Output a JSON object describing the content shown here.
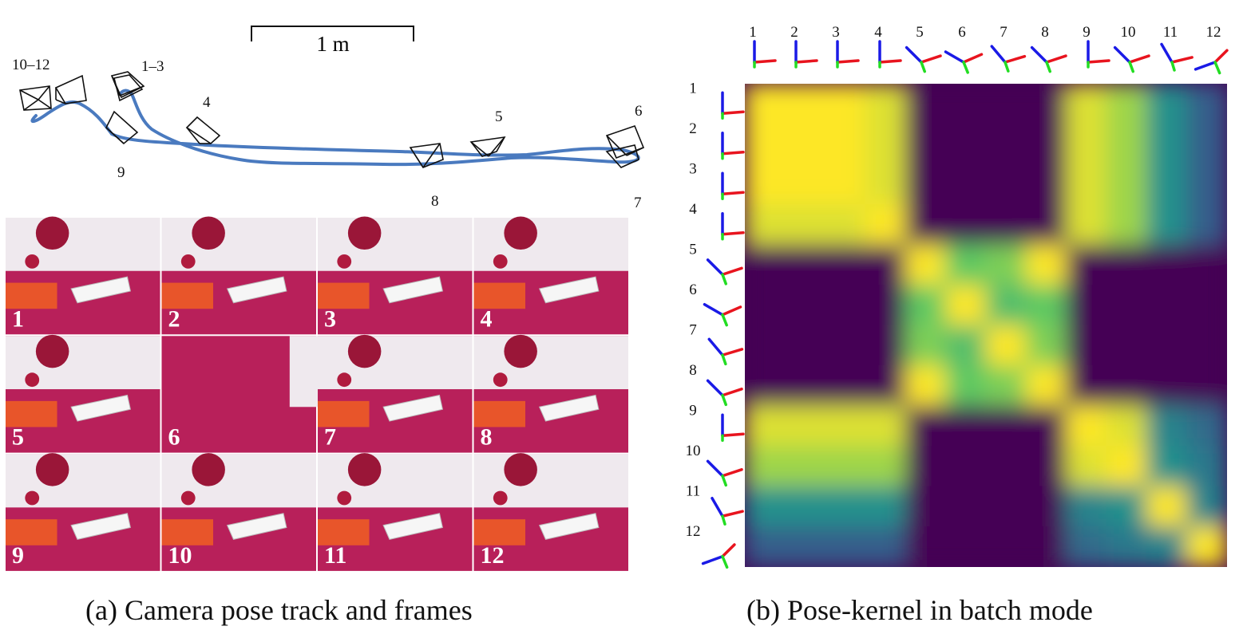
{
  "panel_a": {
    "caption": "(a) Camera pose track and frames",
    "scale_bar_label": "1 m",
    "track_color": "#4a7abf",
    "camera_labels": [
      "10–12",
      "1–3",
      "4",
      "5",
      "6",
      "7",
      "8",
      "9"
    ],
    "frame_labels": [
      "1",
      "2",
      "3",
      "4",
      "5",
      "6",
      "7",
      "8",
      "9",
      "10",
      "11",
      "12"
    ],
    "carpet_color": "#b8205a",
    "wall_color": "#efe9ee",
    "sofa_color": "#e8552a"
  },
  "panel_b": {
    "caption": "(b) Pose-kernel in batch mode",
    "colormap": [
      "#440154",
      "#3b528b",
      "#21918c",
      "#5ec962",
      "#fde725"
    ],
    "axis_colors": {
      "x": "#e8141e",
      "y": "#1a1ae6",
      "z": "#22dd22"
    }
  },
  "chart_data": {
    "type": "heatmap",
    "title": "",
    "x_labels": [
      "1",
      "2",
      "3",
      "4",
      "5",
      "6",
      "7",
      "8",
      "9",
      "10",
      "11",
      "12"
    ],
    "y_labels": [
      "1",
      "2",
      "3",
      "4",
      "5",
      "6",
      "7",
      "8",
      "9",
      "10",
      "11",
      "12"
    ],
    "z_range": [
      0,
      1
    ],
    "orientation_angles_deg": [
      0,
      0,
      0,
      0,
      45,
      60,
      40,
      45,
      0,
      45,
      30,
      110
    ],
    "values": [
      [
        1.0,
        1.0,
        1.0,
        0.95,
        0.0,
        0.0,
        0.0,
        0.0,
        0.95,
        0.85,
        0.5,
        0.3
      ],
      [
        1.0,
        1.0,
        1.0,
        0.95,
        0.0,
        0.0,
        0.0,
        0.0,
        0.95,
        0.85,
        0.5,
        0.3
      ],
      [
        1.0,
        1.0,
        1.0,
        0.95,
        0.0,
        0.0,
        0.0,
        0.0,
        0.95,
        0.85,
        0.5,
        0.3
      ],
      [
        0.95,
        0.95,
        0.95,
        1.0,
        0.0,
        0.0,
        0.0,
        0.0,
        0.95,
        0.85,
        0.5,
        0.3
      ],
      [
        0.0,
        0.0,
        0.0,
        0.0,
        1.0,
        0.75,
        0.8,
        1.0,
        0.0,
        0.0,
        0.0,
        0.0
      ],
      [
        0.0,
        0.0,
        0.0,
        0.0,
        0.75,
        1.0,
        0.7,
        0.75,
        0.0,
        0.0,
        0.0,
        0.0
      ],
      [
        0.0,
        0.0,
        0.0,
        0.0,
        0.8,
        0.7,
        1.0,
        0.8,
        0.0,
        0.0,
        0.0,
        0.0
      ],
      [
        0.0,
        0.0,
        0.0,
        0.0,
        1.0,
        0.75,
        0.8,
        1.0,
        0.0,
        0.0,
        0.0,
        0.0
      ],
      [
        0.95,
        0.95,
        0.95,
        0.95,
        0.0,
        0.0,
        0.0,
        0.0,
        1.0,
        0.95,
        0.45,
        0.35
      ],
      [
        0.85,
        0.85,
        0.85,
        0.85,
        0.0,
        0.0,
        0.0,
        0.0,
        0.95,
        1.0,
        0.5,
        0.4
      ],
      [
        0.5,
        0.5,
        0.5,
        0.5,
        0.0,
        0.0,
        0.0,
        0.0,
        0.45,
        0.5,
        1.0,
        0.45
      ],
      [
        0.3,
        0.3,
        0.3,
        0.3,
        0.0,
        0.0,
        0.0,
        0.0,
        0.35,
        0.4,
        0.45,
        1.0
      ]
    ]
  }
}
